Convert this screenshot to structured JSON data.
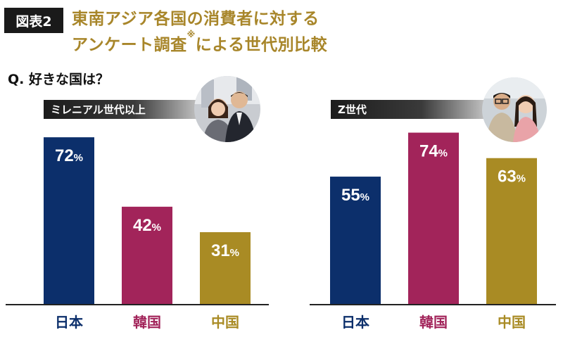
{
  "header": {
    "badge": "図表2",
    "title_line1": "東南アジア各国の消費者に対する",
    "title_line2": "アンケート調査",
    "title_note_mark": "※",
    "title_line2_rest": "による世代別比較"
  },
  "question": "Q. 好きな国は？",
  "colors": {
    "japan": "#0c2f6b",
    "korea": "#a2245a",
    "china": "#a98b24",
    "title": "#a8862a"
  },
  "chart_data": [
    {
      "type": "bar",
      "title": "ミレニアル世代以上",
      "categories": [
        "日本",
        "韓国",
        "中国"
      ],
      "values": [
        72,
        42,
        31
      ],
      "value_unit": "%",
      "ylim": [
        0,
        80
      ],
      "grid": false,
      "legend": "none"
    },
    {
      "type": "bar",
      "title": "Z世代",
      "categories": [
        "日本",
        "韓国",
        "中国"
      ],
      "values": [
        55,
        74,
        63
      ],
      "value_unit": "%",
      "ylim": [
        0,
        80
      ],
      "grid": false,
      "legend": "none"
    }
  ]
}
